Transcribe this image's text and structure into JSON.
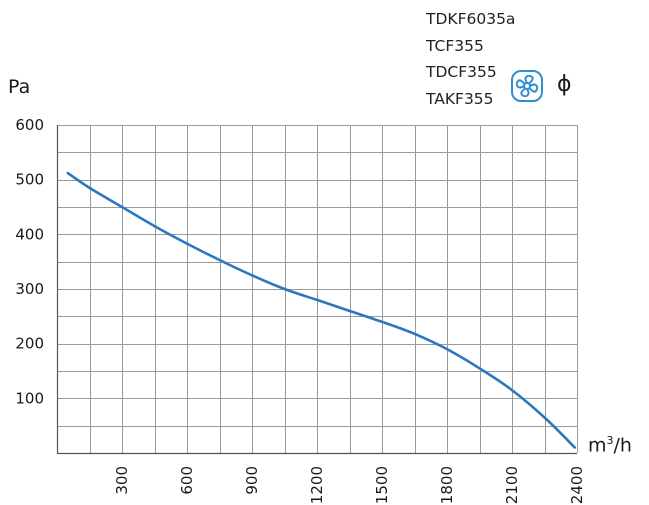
{
  "models": [
    "TDKF6035a",
    "TCF355",
    "TDCF355",
    "TAKF355"
  ],
  "symbols": {
    "fan_icon": "fan-icon",
    "phase_icon": "phase-symbol",
    "phase_text": "ɸ",
    "fan_color": "#2f8fd0"
  },
  "units": {
    "y": "Pa",
    "x_base": "m",
    "x_exp": "3",
    "x_rest": "/h"
  },
  "colors": {
    "curve": "#2b78be",
    "grid": "#9a9a9a",
    "axis": "#555555"
  },
  "chart_data": {
    "type": "line",
    "title": "",
    "xlabel": "m³/h",
    "ylabel": "Pa",
    "xlim": [
      0,
      2400
    ],
    "ylim": [
      0,
      600
    ],
    "x_ticks": [
      300,
      600,
      900,
      1200,
      1500,
      1800,
      2100,
      2400
    ],
    "y_ticks": [
      100,
      200,
      300,
      400,
      500,
      600
    ],
    "grid": true,
    "series": [
      {
        "x": [
          50,
          150,
          300,
          450,
          600,
          750,
          900,
          1050,
          1200,
          1350,
          1500,
          1650,
          1800,
          1950,
          2100,
          2250,
          2390
        ],
        "y": [
          512,
          485,
          450,
          415,
          383,
          353,
          325,
          300,
          280,
          260,
          240,
          218,
          190,
          155,
          115,
          65,
          10
        ]
      }
    ]
  }
}
